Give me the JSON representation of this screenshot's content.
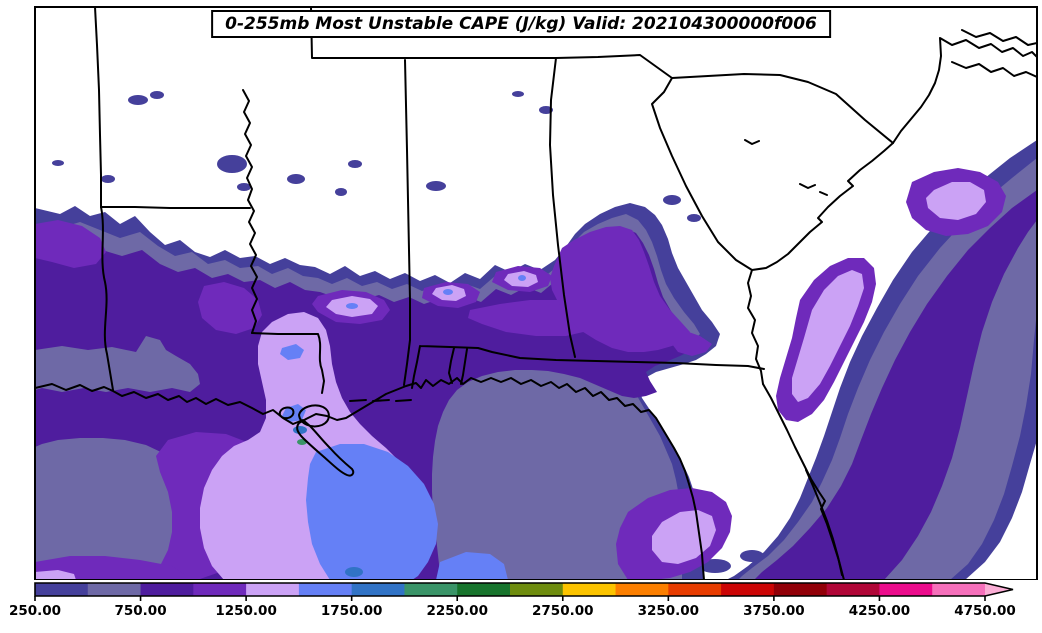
{
  "title": {
    "text": "0-255mb Most Unstable CAPE (J/kg) Valid: 202104300000f006"
  },
  "colorbar": {
    "tick_labels": [
      "250.00",
      "750.00",
      "1250.00",
      "1750.00",
      "2250.00",
      "2750.00",
      "3250.00",
      "3750.00",
      "4250.00",
      "4750.00"
    ],
    "levels": [
      250,
      500,
      750,
      1000,
      1250,
      1500,
      1750,
      2000,
      2250,
      2500,
      2750,
      3000,
      3250,
      3500,
      3750,
      4000,
      4250,
      4500,
      4750
    ],
    "segment_colors": [
      "#45409b",
      "#6e69a6",
      "#4f1d9e",
      "#6f2abb",
      "#cba2f5",
      "#6580f6",
      "#3173c6",
      "#3a9468",
      "#17742c",
      "#6e8c0e",
      "#fcc400",
      "#fc7f00",
      "#e83c00",
      "#cc0505",
      "#910008",
      "#b00637",
      "#ec0c8c",
      "#f670bb"
    ],
    "extend_max_color": "#fbaed6",
    "outline_color": "#000000"
  },
  "map": {
    "units": "J/kg",
    "land_color": "#ffffff",
    "boundary_color": "#000000",
    "frame_color": "#000000"
  },
  "chart_data": {
    "type": "filled_contour_map",
    "title": "0-255mb Most Unstable CAPE (J/kg) Valid: 202104300000f006",
    "legend_position": "bottom",
    "contour_levels": [
      250,
      500,
      750,
      1000,
      1250,
      1500,
      1750,
      2000,
      2250,
      2500,
      2750,
      3000,
      3250,
      3500,
      3750,
      4000,
      4250,
      4500,
      4750
    ],
    "contour_colors": [
      "#45409b",
      "#6e69a6",
      "#4f1d9e",
      "#6f2abb",
      "#cba2f5",
      "#6580f6",
      "#3173c6",
      "#3a9468",
      "#17742c",
      "#6e8c0e",
      "#fcc400",
      "#fc7f00",
      "#e83c00",
      "#cc0505",
      "#910008",
      "#b00637",
      "#ec0c8c",
      "#f670bb",
      "#fbaed6"
    ]
  }
}
